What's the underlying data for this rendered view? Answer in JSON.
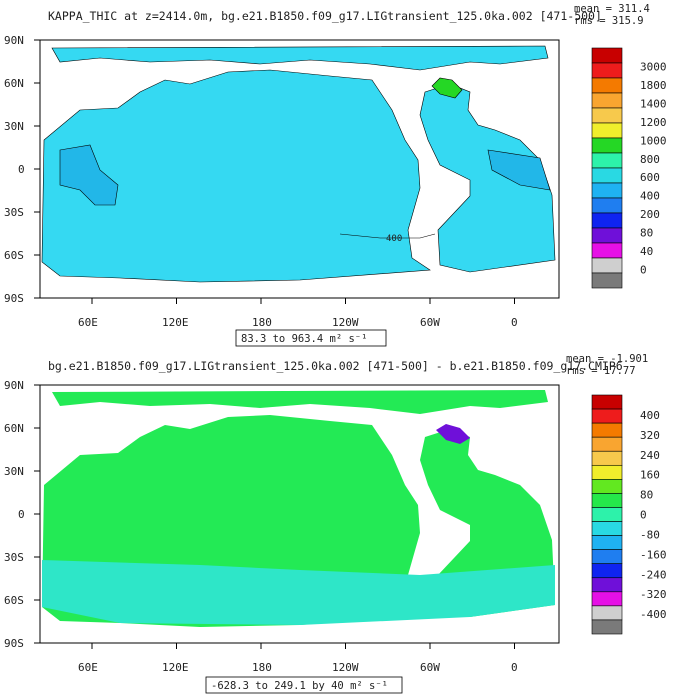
{
  "chart_data": [
    {
      "type": "heatmap",
      "title": "KAPPA_THIC at z=2414.0m, bg.e21.B1850.f09_g17.LIGtransient_125.0ka.002 [471-500]",
      "stats": {
        "mean": "mean = 311.4",
        "rms": "rms = 315.9"
      },
      "range_label": "83.3 to 963.4 m² s⁻¹",
      "contour_label": "400",
      "x_tick_labels": [
        "60E",
        "120E",
        "180",
        "120W",
        "60W",
        "0"
      ],
      "y_tick_labels": [
        "90N",
        "60N",
        "30N",
        "0",
        "30S",
        "60S",
        "90S"
      ],
      "colorbar": {
        "labels": [
          "3000",
          "1800",
          "1400",
          "1200",
          "1000",
          "800",
          "600",
          "400",
          "200",
          "80",
          "40",
          "0"
        ],
        "colors": [
          "#c80000",
          "#ee1c1c",
          "#f47a00",
          "#f9a530",
          "#f7c94c",
          "#f0ee2c",
          "#25d725",
          "#2df2aa",
          "#29d9e3",
          "#1fb2f2",
          "#1f7ef0",
          "#0f24f0",
          "#6f10d9",
          "#e610e6",
          "#cfcfcf",
          "#7a7a7a"
        ]
      },
      "fill_color": "#35d9f2",
      "secondary_fill_color": "#22b7e8"
    },
    {
      "type": "heatmap",
      "title": "bg.e21.B1850.f09_g17.LIGtransient_125.0ka.002 [471-500] - b.e21.B1850.f09_g17.CMIP6",
      "stats": {
        "mean": "mean = -1.901",
        "rms": "rms = 17.77"
      },
      "range_label": "-628.3 to 249.1 by 40 m² s⁻¹",
      "x_tick_labels": [
        "60E",
        "120E",
        "180",
        "120W",
        "60W",
        "0"
      ],
      "y_tick_labels": [
        "90N",
        "60N",
        "30N",
        "0",
        "30S",
        "60S",
        "90S"
      ],
      "colorbar": {
        "labels": [
          "400",
          "320",
          "240",
          "160",
          "80",
          "0",
          "-80",
          "-160",
          "-240",
          "-320",
          "-400"
        ],
        "colors": [
          "#c80000",
          "#ee1c1c",
          "#f47a00",
          "#f9a530",
          "#f7c94c",
          "#f0ee2c",
          "#62e820",
          "#25e84a",
          "#2df2aa",
          "#29d9e3",
          "#1fb2f2",
          "#1f7ef0",
          "#0f24f0",
          "#6f10d9",
          "#e610e6",
          "#cfcfcf",
          "#7a7a7a"
        ]
      },
      "fill_color": "#23ea55",
      "secondary_fill_color": "#2ee6c8"
    }
  ]
}
